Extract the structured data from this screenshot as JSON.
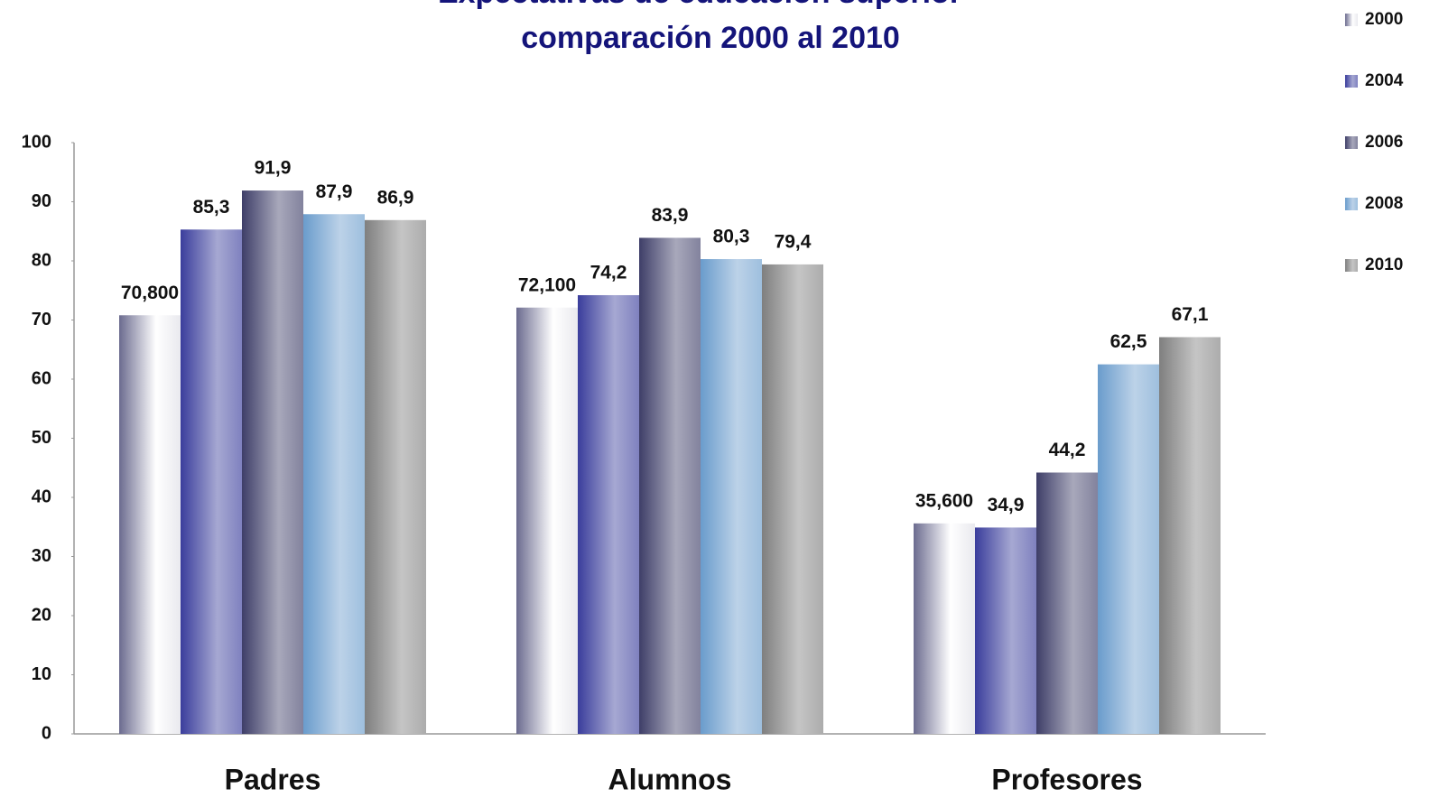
{
  "chart_data": {
    "type": "bar",
    "title": "Expectativas de educación superior",
    "subtitle": "comparación 2000 al 2010",
    "categories": [
      "Padres",
      "Alumnos",
      "Profesores"
    ],
    "series": [
      {
        "name": "2000",
        "color": "#6b6b8f",
        "values": [
          70.8,
          72.1,
          35.6
        ],
        "value_labels": [
          "70,800",
          "72,100",
          "35,600"
        ]
      },
      {
        "name": "2004",
        "color": "#3a3d9c",
        "values": [
          85.3,
          74.2,
          34.9
        ],
        "value_labels": [
          "85,3",
          "74,2",
          "34,9"
        ]
      },
      {
        "name": "2006",
        "color": "#3e3e68",
        "values": [
          91.9,
          83.9,
          44.2
        ],
        "value_labels": [
          "91,9",
          "83,9",
          "44,2"
        ]
      },
      {
        "name": "2008",
        "color": "#6a9ccc",
        "values": [
          87.9,
          80.3,
          62.5
        ],
        "value_labels": [
          "87,9",
          "80,3",
          "62,5"
        ]
      },
      {
        "name": "2010",
        "color": "#7f7f7f",
        "values": [
          86.9,
          79.4,
          67.1
        ],
        "value_labels": [
          "86,9",
          "79,4",
          "67,1"
        ]
      }
    ],
    "ylim": [
      0,
      100
    ],
    "yticks": [
      0,
      10,
      20,
      30,
      40,
      50,
      60,
      70,
      80,
      90,
      100
    ],
    "legend": "right"
  }
}
